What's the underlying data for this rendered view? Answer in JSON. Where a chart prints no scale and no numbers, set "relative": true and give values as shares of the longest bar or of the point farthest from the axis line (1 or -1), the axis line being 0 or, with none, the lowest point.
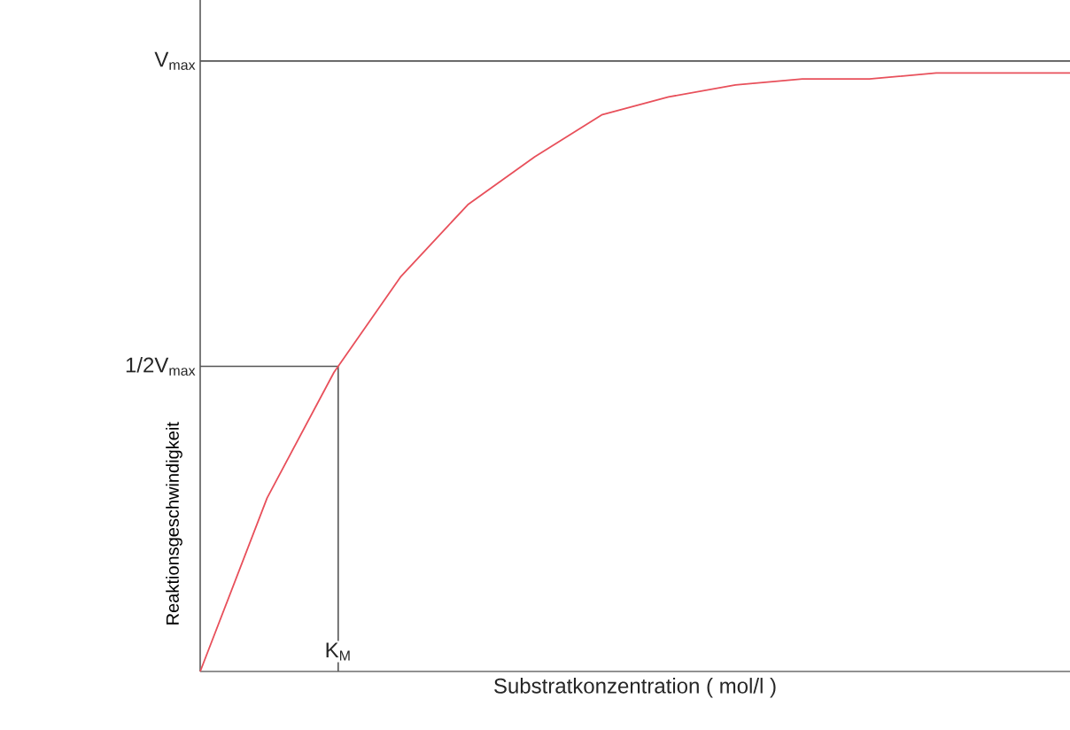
{
  "chart_data": {
    "type": "line",
    "relative": true,
    "xlabel": "Substratkonzentration ( mol/l )",
    "ylabel": "Reaktionsgeschwindigkeit",
    "categories": [
      null,
      null,
      null,
      null,
      null,
      null,
      null,
      null,
      null,
      null,
      null,
      null,
      null,
      null
    ],
    "annotations": [
      "K$_{M}$"
    ],
    "ref_lines": [
      {
        "axis": "y",
        "value": 1.02,
        "label": "V$_{max}$",
        "color": "#555555"
      },
      {
        "axis": "y",
        "value": 0.51,
        "label": "1/2V$_{max}$",
        "color": "#555555"
      }
    ],
    "series": [
      {
        "color": "#e8505b",
        "values": [
          0,
          0.29,
          0.5,
          0.66,
          0.78,
          0.86,
          0.93,
          0.96,
          0.98,
          0.99,
          0.99,
          1,
          1,
          1
        ]
      }
    ]
  }
}
